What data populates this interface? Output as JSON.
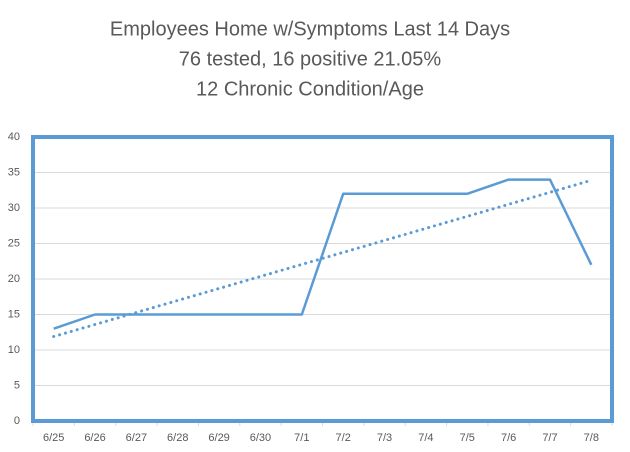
{
  "chart_data": {
    "type": "line",
    "title": [
      "Employees Home w/Symptoms  Last 14 Days",
      "76 tested, 16 positive 21.05%",
      "12 Chronic Condition/Age"
    ],
    "categories": [
      "6/25",
      "6/26",
      "6/27",
      "6/28",
      "6/29",
      "6/30",
      "7/1",
      "7/2",
      "7/3",
      "7/4",
      "7/5",
      "7/6",
      "7/7",
      "7/8"
    ],
    "values": [
      13,
      15,
      15,
      15,
      15,
      15,
      15,
      32,
      32,
      32,
      32,
      34,
      34,
      22
    ],
    "color": "#5b9bd5",
    "trendline": {
      "values": [
        11.9,
        33.9
      ],
      "color": "#5b9bd5"
    },
    "ylim": [
      0,
      40
    ],
    "yticks": [
      0,
      5,
      10,
      15,
      20,
      25,
      30,
      35,
      40
    ],
    "grid": true
  }
}
